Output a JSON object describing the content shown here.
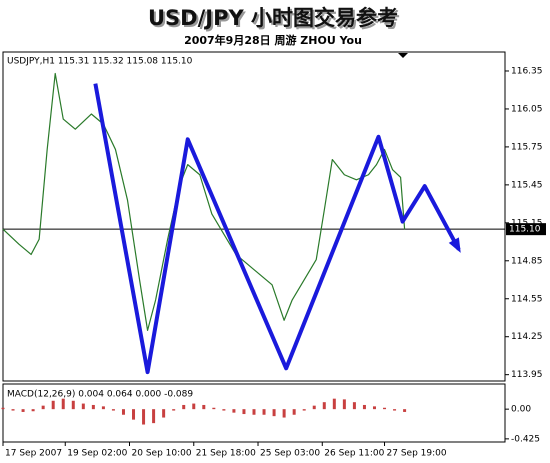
{
  "chart_data": [
    {
      "type": "line",
      "title": "USD/JPY 小时图交易参考",
      "subtitle": "2007年9月28日    周游 ZHOU You",
      "label": "USDJPY,H1  115.31 115.32 115.08 115.10",
      "xlim": [
        0,
        250
      ],
      "xticks": [
        {
          "value": 0,
          "label": "17 Sep 2007"
        },
        {
          "value": 31,
          "label": "19 Sep 02:00"
        },
        {
          "value": 63,
          "label": "20 Sep 10:00"
        },
        {
          "value": 95,
          "label": "21 Sep 18:00"
        },
        {
          "value": 127,
          "label": "25 Sep 03:00"
        },
        {
          "value": 159,
          "label": "26 Sep 11:00"
        },
        {
          "value": 190,
          "label": "27 Sep 19:00"
        }
      ],
      "ylim": [
        113.9,
        116.5
      ],
      "yticks": [
        116.35,
        116.05,
        115.75,
        115.45,
        115.15,
        114.85,
        114.55,
        114.25,
        113.95
      ],
      "current_price": {
        "value": 115.1,
        "label": "115.10"
      },
      "series": [
        {
          "color": "#2a7a2a",
          "x": [
            0,
            8,
            14,
            18,
            22,
            26,
            30,
            36,
            44,
            50,
            56,
            62,
            68,
            72,
            76,
            82,
            88,
            92,
            98,
            104,
            110,
            116,
            122,
            128,
            134,
            140,
            144,
            150,
            156,
            160,
            164,
            170,
            176,
            182,
            186,
            190,
            194,
            198,
            200
          ],
          "values": [
            115.1,
            114.98,
            114.9,
            115.02,
            115.73,
            116.33,
            115.97,
            115.89,
            116.01,
            115.93,
            115.73,
            115.33,
            114.7,
            114.3,
            114.54,
            115.02,
            115.45,
            115.61,
            115.53,
            115.22,
            115.06,
            114.9,
            114.82,
            114.74,
            114.66,
            114.38,
            114.54,
            114.7,
            114.86,
            115.25,
            115.65,
            115.53,
            115.49,
            115.53,
            115.61,
            115.73,
            115.57,
            115.51,
            115.1
          ]
        },
        {
          "color": "#1a1adc",
          "x": [
            46,
            72,
            92,
            141,
            187,
            199,
            210,
            227
          ],
          "values": [
            116.25,
            113.97,
            115.81,
            114.0,
            115.83,
            115.16,
            115.44,
            114.94
          ]
        }
      ]
    },
    {
      "type": "bar",
      "label": "MACD(12,26,9) 0.004 0.064 0.000 -0.089",
      "color": "#c84040",
      "ylim": [
        -0.47,
        0.36
      ],
      "yticks": [
        {
          "value": 0,
          "label": "0.00"
        },
        -0.425
      ],
      "x": [
        0,
        5,
        10,
        15,
        20,
        25,
        30,
        35,
        40,
        45,
        50,
        55,
        60,
        65,
        70,
        75,
        80,
        85,
        90,
        95,
        100,
        105,
        110,
        115,
        120,
        125,
        130,
        135,
        140,
        145,
        150,
        155,
        160,
        165,
        170,
        175,
        180,
        185,
        190,
        195,
        200
      ],
      "values": [
        0.02,
        -0.02,
        -0.04,
        -0.03,
        0.05,
        0.12,
        0.15,
        0.12,
        0.08,
        0.06,
        0.04,
        -0.02,
        -0.08,
        -0.15,
        -0.22,
        -0.2,
        -0.12,
        -0.02,
        0.06,
        0.08,
        0.06,
        0.02,
        -0.02,
        -0.05,
        -0.07,
        -0.08,
        -0.08,
        -0.1,
        -0.12,
        -0.08,
        -0.02,
        0.05,
        0.1,
        0.15,
        0.14,
        0.1,
        0.06,
        0.04,
        0.02,
        -0.02,
        -0.04
      ]
    }
  ]
}
